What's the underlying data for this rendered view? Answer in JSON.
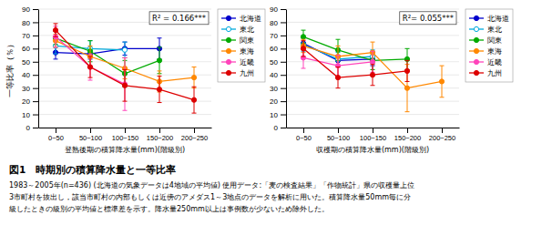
{
  "title": "図1　時期別の積算降水量と一等比率",
  "annotations": [
    "1983～2005年(n=436) (北海道の気象データは4地域の平均値) 使用データ:「麦の検査結果」「作物統計」県の収穫量上位",
    "3市町村を抜出し，該当市町村の内部もしくは近傍のアメダス1～3地点のデータを解析に用いた。積算降水量50mm毎に分",
    "級したときの級別の平均値と標準差を示す。降水量250mm以上は事例数が少ないため除外した。"
  ],
  "chart_data": [
    {
      "type": "line",
      "x_label": "登熟後期の積算降水量(mm)(階級別)",
      "y_label": "一等比率（％）",
      "annotations": [
        "R² = 0.166***"
      ],
      "categories": [
        "0~50",
        "50~100",
        "100~150",
        "150~200",
        "200~250"
      ],
      "ylim": [
        0,
        90
      ],
      "yticks": [
        0,
        10,
        20,
        30,
        40,
        50,
        60,
        70,
        80,
        90
      ],
      "grid": "y",
      "legend": "right",
      "series": [
        {
          "name": "北海道",
          "color": "#0000CC",
          "marker": "circle",
          "values": [
            57,
            56,
            60,
            60,
            null
          ],
          "errors": [
            5,
            4,
            5,
            8,
            null
          ]
        },
        {
          "name": "東北",
          "color": "#00AADD",
          "marker": "open-circle",
          "values": [
            62,
            60,
            59,
            null,
            null
          ],
          "errors": [
            6,
            6,
            6,
            null,
            null
          ]
        },
        {
          "name": "関東",
          "color": "#00AA00",
          "marker": "circle",
          "values": [
            68,
            58,
            41,
            51,
            null
          ],
          "errors": [
            5,
            8,
            10,
            10,
            null
          ]
        },
        {
          "name": "東海",
          "color": "#FF8800",
          "marker": "circle",
          "values": [
            66,
            54,
            45,
            35,
            38
          ],
          "errors": [
            5,
            8,
            8,
            8,
            8
          ]
        },
        {
          "name": "近畿",
          "color": "#FF44BB",
          "marker": "circle",
          "values": [
            69,
            46,
            33,
            null,
            null
          ],
          "errors": [
            8,
            10,
            20,
            null,
            null
          ]
        },
        {
          "name": "九州",
          "color": "#DD0000",
          "marker": "circle",
          "values": [
            74,
            46,
            32,
            29,
            21
          ],
          "errors": [
            5,
            8,
            12,
            10,
            10
          ]
        }
      ]
    },
    {
      "type": "line",
      "x_label": "収穫期の積算降水量(mm)(階級別)",
      "annotations": [
        "R²= 0.055***"
      ],
      "categories": [
        "0~50",
        "50~100",
        "100~150",
        "150~200",
        "200~250"
      ],
      "ylim": [
        0,
        90
      ],
      "yticks": [
        0,
        10,
        20,
        30,
        40,
        50,
        60,
        70,
        80,
        90
      ],
      "grid": "y",
      "legend": "right",
      "series": [
        {
          "name": "北海道",
          "color": "#0000CC",
          "marker": "circle",
          "values": [
            64,
            51,
            52,
            null,
            null
          ],
          "errors": [
            4,
            4,
            5,
            null,
            null
          ]
        },
        {
          "name": "東北",
          "color": "#00AADD",
          "marker": "open-circle",
          "values": [
            63,
            52,
            54,
            null,
            null
          ],
          "errors": [
            5,
            5,
            5,
            null,
            null
          ]
        },
        {
          "name": "関東",
          "color": "#00AA00",
          "marker": "circle",
          "values": [
            69,
            59,
            51,
            52,
            null
          ],
          "errors": [
            5,
            8,
            7,
            8,
            null
          ]
        },
        {
          "name": "東海",
          "color": "#FF8800",
          "marker": "circle",
          "values": [
            62,
            54,
            57,
            30,
            35
          ],
          "errors": [
            5,
            8,
            8,
            18,
            12
          ]
        },
        {
          "name": "近畿",
          "color": "#FF44BB",
          "marker": "circle",
          "values": [
            53,
            47,
            50,
            null,
            null
          ],
          "errors": [
            8,
            8,
            8,
            null,
            null
          ]
        },
        {
          "name": "九州",
          "color": "#DD0000",
          "marker": "circle",
          "values": [
            60,
            38,
            40,
            43,
            null
          ],
          "errors": [
            6,
            8,
            8,
            8,
            null
          ]
        }
      ]
    }
  ]
}
